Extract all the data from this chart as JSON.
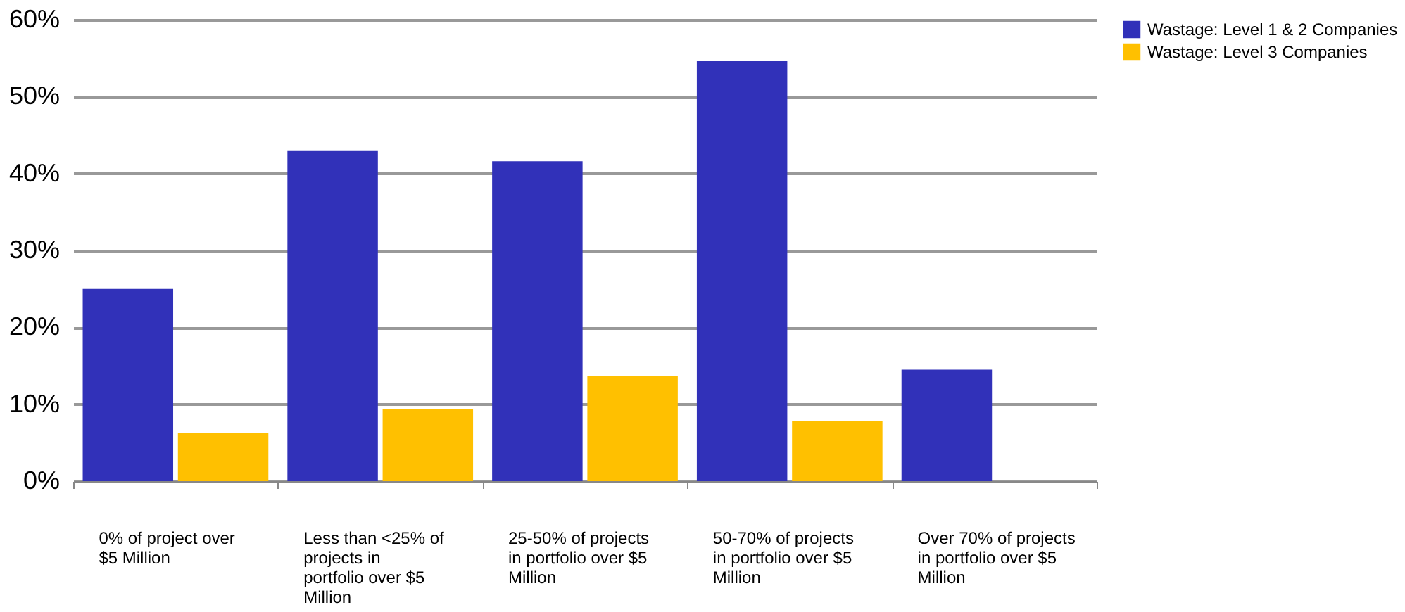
{
  "chart_data": {
    "type": "bar",
    "categories": [
      "0% of project over $5 Million",
      "Less than <25% of projects in portfolio over $5 Million",
      "25-50% of projects in portfolio over $5 Million",
      "50-70% of projects in portfolio over $5 Million",
      "Over 70% of projects in portfolio over $5 Million"
    ],
    "series": [
      {
        "name": "Wastage: Level 1 & 2 Companies",
        "color": "#3131b9",
        "values": [
          25,
          43,
          41.6,
          54.6,
          14.5
        ]
      },
      {
        "name": "Wastage: Level 3 Companies",
        "color": "#ffc000",
        "values": [
          6.3,
          9.4,
          13.7,
          7.8,
          null
        ]
      }
    ],
    "ylim": [
      0,
      60
    ],
    "yticks": [
      {
        "value": 0,
        "label": "0%"
      },
      {
        "value": 10,
        "label": "10%"
      },
      {
        "value": 20,
        "label": "20%"
      },
      {
        "value": 30,
        "label": "30%"
      },
      {
        "value": 40,
        "label": "40%"
      },
      {
        "value": 50,
        "label": "50%"
      },
      {
        "value": 60,
        "label": "60%"
      }
    ],
    "grid": "y",
    "legend": "right"
  }
}
